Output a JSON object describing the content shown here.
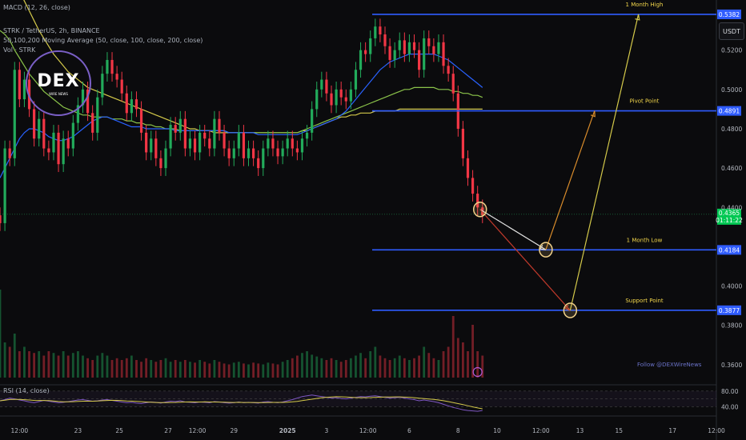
{
  "header": {
    "macd_label": "MACD (12, 26, close)",
    "symbol_line": "STRK / TetherUS, 2h, BINANCE",
    "ma_line": "50,100,200 Moving Average (50, close, 100, close, 200, close)",
    "vol_line": "Vol · STRK"
  },
  "currency_button": "USDT",
  "logo": {
    "main": "DEX",
    "sub": "WIRE NEWS"
  },
  "watermark": "Follow @DEXWireNews",
  "rsi_label": "RSI (14, close)",
  "colors": {
    "background": "#0b0b0d",
    "level_line": "#2f5cff",
    "level_text": "#f2d64b",
    "up_candle": "#22ab5b",
    "down_candle": "#f23645",
    "ma50": "#2962ff",
    "ma100": "#8bc34a",
    "ma200": "#d4c94a",
    "current_price_tag": "#00c853"
  },
  "chart_data": {
    "type": "candlestick",
    "symbol": "STRK / TetherUS",
    "timeframe": "2h",
    "exchange": "BINANCE",
    "price_axis_ticks": [
      "0.5200",
      "0.5000",
      "0.4800",
      "0.4600",
      "0.4400",
      "0.4000",
      "0.3800",
      "0.3600"
    ],
    "ylim": [
      0.351,
      0.5455
    ],
    "time_axis_ticks": [
      "12:00",
      "23",
      "25",
      "27",
      "12:00",
      "29",
      "2025",
      "3",
      "12:00",
      "6",
      "8",
      "10",
      "12:00",
      "13",
      "15",
      "17",
      "12:00"
    ],
    "time_tick_index": [
      4,
      16,
      24.5,
      34.5,
      40.5,
      48,
      59,
      67,
      75.5,
      84,
      94,
      102,
      111,
      119,
      127,
      138,
      147
    ],
    "levels": [
      {
        "label": "1 Month High",
        "value": 0.5382,
        "tag": "0.5382"
      },
      {
        "label": "Pivot Point",
        "value": 0.4891,
        "tag": "0.4891"
      },
      {
        "label": "1 Month Low",
        "value": 0.4184,
        "tag": "0.4184"
      },
      {
        "label": "Support Point",
        "value": 0.3877,
        "tag": "0.3877"
      }
    ],
    "current_price": {
      "value": 0.4365,
      "tag": "0.4365",
      "countdown": "01:11:22"
    },
    "closes": [
      0.432,
      0.47,
      0.465,
      0.51,
      0.495,
      0.505,
      0.49,
      0.475,
      0.485,
      0.47,
      0.468,
      0.478,
      0.462,
      0.475,
      0.47,
      0.483,
      0.492,
      0.5,
      0.488,
      0.478,
      0.496,
      0.508,
      0.515,
      0.508,
      0.505,
      0.498,
      0.488,
      0.495,
      0.49,
      0.478,
      0.468,
      0.475,
      0.465,
      0.46,
      0.47,
      0.482,
      0.478,
      0.485,
      0.47,
      0.475,
      0.468,
      0.478,
      0.475,
      0.47,
      0.485,
      0.478,
      0.47,
      0.465,
      0.47,
      0.478,
      0.465,
      0.47,
      0.465,
      0.46,
      0.47,
      0.475,
      0.47,
      0.466,
      0.47,
      0.475,
      0.47,
      0.468,
      0.475,
      0.478,
      0.49,
      0.5,
      0.505,
      0.498,
      0.492,
      0.5,
      0.496,
      0.494,
      0.5,
      0.51,
      0.52,
      0.518,
      0.526,
      0.532,
      0.528,
      0.522,
      0.515,
      0.52,
      0.525,
      0.518,
      0.524,
      0.52,
      0.51,
      0.526,
      0.522,
      0.518,
      0.524,
      0.512,
      0.508,
      0.498,
      0.48,
      0.465,
      0.455,
      0.447,
      0.44,
      0.436
    ],
    "volumes": [
      1,
      0.4,
      0.35,
      0.5,
      0.3,
      0.35,
      0.3,
      0.28,
      0.3,
      0.25,
      0.3,
      0.28,
      0.25,
      0.3,
      0.25,
      0.28,
      0.3,
      0.25,
      0.22,
      0.2,
      0.25,
      0.28,
      0.25,
      0.2,
      0.22,
      0.2,
      0.22,
      0.25,
      0.2,
      0.18,
      0.22,
      0.2,
      0.18,
      0.2,
      0.22,
      0.18,
      0.2,
      0.18,
      0.2,
      0.18,
      0.17,
      0.2,
      0.18,
      0.16,
      0.2,
      0.18,
      0.16,
      0.15,
      0.17,
      0.18,
      0.16,
      0.15,
      0.17,
      0.16,
      0.15,
      0.17,
      0.16,
      0.15,
      0.18,
      0.2,
      0.22,
      0.25,
      0.28,
      0.3,
      0.26,
      0.24,
      0.22,
      0.2,
      0.22,
      0.2,
      0.18,
      0.2,
      0.22,
      0.25,
      0.28,
      0.22,
      0.3,
      0.35,
      0.25,
      0.22,
      0.2,
      0.22,
      0.25,
      0.22,
      0.2,
      0.22,
      0.25,
      0.35,
      0.28,
      0.22,
      0.2,
      0.3,
      0.35,
      0.7,
      0.45,
      0.4,
      0.3,
      0.6,
      0.3,
      0.25
    ],
    "ma50": [
      0.455,
      0.46,
      0.465,
      0.47,
      0.475,
      0.478,
      0.48,
      0.48,
      0.479,
      0.478,
      0.476,
      0.475,
      0.474,
      0.474,
      0.475,
      0.476,
      0.478,
      0.48,
      0.482,
      0.484,
      0.485,
      0.486,
      0.486,
      0.485,
      0.484,
      0.483,
      0.482,
      0.481,
      0.481,
      0.481,
      0.48,
      0.48,
      0.48,
      0.48,
      0.48,
      0.48,
      0.479,
      0.479,
      0.479,
      0.479,
      0.479,
      0.479,
      0.479,
      0.479,
      0.479,
      0.479,
      0.479,
      0.478,
      0.478,
      0.478,
      0.478,
      0.478,
      0.478,
      0.477,
      0.477,
      0.477,
      0.477,
      0.477,
      0.477,
      0.477,
      0.477,
      0.477,
      0.478,
      0.479,
      0.48,
      0.481,
      0.482,
      0.483,
      0.484,
      0.485,
      0.487,
      0.489,
      0.492,
      0.495,
      0.498,
      0.501,
      0.504,
      0.507,
      0.51,
      0.512,
      0.514,
      0.515,
      0.516,
      0.517,
      0.518,
      0.518,
      0.518,
      0.518,
      0.518,
      0.518,
      0.517,
      0.516,
      0.515,
      0.513,
      0.511,
      0.509,
      0.507,
      0.505,
      0.503,
      0.501
    ],
    "ma100": [
      0.53,
      0.528,
      0.525,
      0.52,
      0.516,
      0.512,
      0.508,
      0.505,
      0.502,
      0.499,
      0.497,
      0.495,
      0.493,
      0.491,
      0.49,
      0.489,
      0.488,
      0.487,
      0.487,
      0.486,
      0.486,
      0.486,
      0.486,
      0.485,
      0.485,
      0.485,
      0.484,
      0.484,
      0.483,
      0.483,
      0.482,
      0.482,
      0.481,
      0.481,
      0.48,
      0.48,
      0.48,
      0.479,
      0.479,
      0.479,
      0.479,
      0.479,
      0.479,
      0.479,
      0.479,
      0.479,
      0.479,
      0.478,
      0.478,
      0.478,
      0.478,
      0.478,
      0.478,
      0.478,
      0.478,
      0.478,
      0.478,
      0.478,
      0.478,
      0.478,
      0.478,
      0.478,
      0.479,
      0.48,
      0.481,
      0.482,
      0.483,
      0.484,
      0.485,
      0.486,
      0.487,
      0.488,
      0.489,
      0.49,
      0.491,
      0.492,
      0.493,
      0.494,
      0.495,
      0.496,
      0.497,
      0.498,
      0.499,
      0.5,
      0.5,
      0.501,
      0.501,
      0.501,
      0.501,
      0.501,
      0.5,
      0.5,
      0.5,
      0.499,
      0.499,
      0.498,
      0.498,
      0.497,
      0.497,
      0.496
    ],
    "ma200": [
      0.57,
      0.565,
      0.56,
      0.555,
      0.55,
      0.545,
      0.54,
      0.535,
      0.53,
      0.526,
      0.522,
      0.518,
      0.515,
      0.512,
      0.509,
      0.507,
      0.505,
      0.503,
      0.501,
      0.5,
      0.499,
      0.498,
      0.497,
      0.496,
      0.495,
      0.494,
      0.493,
      0.492,
      0.491,
      0.49,
      0.489,
      0.488,
      0.487,
      0.486,
      0.485,
      0.484,
      0.483,
      0.482,
      0.481,
      0.48,
      0.48,
      0.479,
      0.479,
      0.479,
      0.478,
      0.478,
      0.478,
      0.478,
      0.478,
      0.478,
      0.478,
      0.478,
      0.478,
      0.478,
      0.478,
      0.478,
      0.478,
      0.478,
      0.478,
      0.478,
      0.478,
      0.478,
      0.479,
      0.479,
      0.48,
      0.481,
      0.482,
      0.483,
      0.484,
      0.485,
      0.486,
      0.486,
      0.487,
      0.487,
      0.488,
      0.488,
      0.488,
      0.489,
      0.489,
      0.489,
      0.489,
      0.489,
      0.49,
      0.49,
      0.49,
      0.49,
      0.49,
      0.49,
      0.49,
      0.49,
      0.49,
      0.49,
      0.49,
      0.49,
      0.49,
      0.49,
      0.49,
      0.49,
      0.49,
      0.49
    ],
    "projection_paths": [
      {
        "name": "drop",
        "color": "#e0e0e0",
        "points": [
          [
            98.5,
            0.439
          ],
          [
            112,
            0.4185
          ]
        ]
      },
      {
        "name": "bounce-to-pivot",
        "color": "#d98c2b",
        "points": [
          [
            112,
            0.4185
          ],
          [
            122,
            0.4891
          ]
        ]
      },
      {
        "name": "deep-drop",
        "color": "#c0392b",
        "points": [
          [
            98.5,
            0.439
          ],
          [
            117,
            0.3876
          ]
        ]
      },
      {
        "name": "rally-to-high",
        "color": "#d4c94a",
        "points": [
          [
            117,
            0.3876
          ],
          [
            131,
            0.5382
          ]
        ]
      }
    ],
    "rsi": {
      "ticks": [
        "80.00",
        "40.00"
      ],
      "ylim": [
        20,
        90
      ],
      "values": [
        55,
        58,
        62,
        60,
        57,
        55,
        52,
        50,
        53,
        56,
        54,
        52,
        50,
        51,
        53,
        55,
        57,
        58,
        56,
        54,
        55,
        57,
        58,
        56,
        54,
        52,
        50,
        51,
        49,
        48,
        50,
        52,
        51,
        49,
        52,
        54,
        53,
        55,
        52,
        51,
        50,
        52,
        51,
        50,
        53,
        52,
        50,
        49,
        50,
        52,
        50,
        51,
        50,
        49,
        52,
        53,
        51,
        50,
        52,
        55,
        58,
        62,
        66,
        68,
        70,
        68,
        66,
        64,
        62,
        63,
        61,
        60,
        62,
        64,
        66,
        65,
        67,
        68,
        66,
        64,
        62,
        63,
        64,
        62,
        60,
        58,
        55,
        57,
        55,
        53,
        50,
        46,
        42,
        38,
        35,
        32,
        30,
        29,
        28,
        30
      ]
    }
  }
}
